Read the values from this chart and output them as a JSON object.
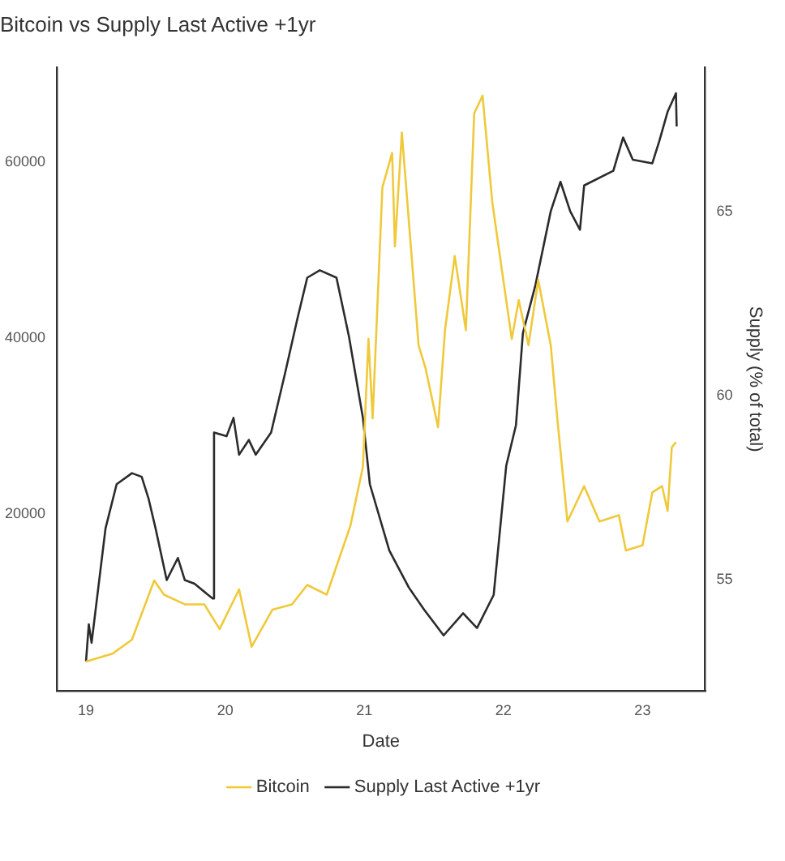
{
  "chart_data": {
    "type": "line",
    "title": "Bitcoin vs Supply Last Active +1yr",
    "xlabel": "Date",
    "y2label": "Supply (% of total)",
    "xlim": [
      2018.79,
      2023.45
    ],
    "xticks": [
      {
        "value": 2019,
        "label": "19"
      },
      {
        "value": 2020,
        "label": "20"
      },
      {
        "value": 2021,
        "label": "21"
      },
      {
        "value": 2022,
        "label": "22"
      },
      {
        "value": 2023,
        "label": "23"
      }
    ],
    "ylim": [
      0,
      70700
    ],
    "yticks": [
      20000,
      40000,
      60000
    ],
    "y2lim": [
      52,
      68.9
    ],
    "y2ticks": [
      55,
      60,
      65
    ],
    "grid": false,
    "legend": "bottom",
    "marker": "none",
    "line_style": "solid",
    "series": [
      {
        "name": "Bitcoin",
        "color": "#f0c93a",
        "axis": "y",
        "x": [
          2019.0,
          2019.19,
          2019.33,
          2019.49,
          2019.56,
          2019.71,
          2019.85,
          2019.96,
          2020.1,
          2020.19,
          2020.34,
          2020.48,
          2020.59,
          2020.73,
          2020.9,
          2020.99,
          2021.03,
          2021.06,
          2021.13,
          2021.2,
          2021.22,
          2021.27,
          2021.34,
          2021.39,
          2021.44,
          2021.53,
          2021.58,
          2021.65,
          2021.73,
          2021.79,
          2021.85,
          2021.92,
          2021.99,
          2022.06,
          2022.11,
          2022.18,
          2022.25,
          2022.34,
          2022.39,
          2022.46,
          2022.58,
          2022.69,
          2022.83,
          2022.88,
          2023.0,
          2023.07,
          2023.14,
          2023.18,
          2023.21,
          2023.24
        ],
        "values": [
          3300,
          4200,
          5800,
          12500,
          10900,
          9800,
          9800,
          7000,
          11500,
          5000,
          9200,
          9800,
          12000,
          10900,
          18700,
          25400,
          39900,
          30900,
          57100,
          61000,
          50400,
          63300,
          49300,
          39200,
          36600,
          29900,
          40900,
          49300,
          40900,
          65500,
          67500,
          55400,
          47600,
          39900,
          44300,
          39200,
          46600,
          39200,
          30400,
          19200,
          23200,
          19200,
          19900,
          15900,
          16500,
          22500,
          23200,
          20400,
          27600,
          28200
        ]
      },
      {
        "name": "Supply Last Active +1yr",
        "color": "#2b2b2b",
        "axis": "y2",
        "x": [
          2019.0,
          2019.02,
          2019.04,
          2019.14,
          2019.22,
          2019.33,
          2019.4,
          2019.45,
          2019.5,
          2019.58,
          2019.66,
          2019.71,
          2019.78,
          2019.91,
          2019.92,
          2020.01,
          2020.06,
          2020.1,
          2020.17,
          2020.22,
          2020.33,
          2020.43,
          2020.52,
          2020.59,
          2020.68,
          2020.8,
          2020.89,
          2020.99,
          2021.04,
          2021.18,
          2021.32,
          2021.43,
          2021.57,
          2021.71,
          2021.81,
          2021.93,
          2022.02,
          2022.09,
          2022.14,
          2022.23,
          2022.34,
          2022.41,
          2022.48,
          2022.55,
          2022.58,
          2022.79,
          2022.86,
          2022.93,
          2023.07,
          2023.12,
          2023.18,
          2023.24,
          2023.245
        ],
        "values": [
          52.8,
          53.8,
          53.3,
          56.4,
          57.6,
          57.9,
          57.8,
          57.2,
          56.4,
          55.0,
          55.6,
          55.0,
          54.9,
          54.5,
          59.0,
          58.9,
          59.4,
          58.4,
          58.8,
          58.4,
          59.0,
          60.6,
          62.1,
          63.2,
          63.4,
          63.2,
          61.6,
          59.4,
          57.6,
          55.8,
          54.8,
          54.2,
          53.5,
          54.1,
          53.7,
          54.6,
          58.1,
          59.2,
          61.7,
          63.0,
          65.0,
          65.8,
          65.0,
          64.5,
          65.7,
          66.1,
          67.0,
          66.4,
          66.3,
          66.9,
          67.7,
          68.2,
          67.3
        ]
      }
    ]
  }
}
